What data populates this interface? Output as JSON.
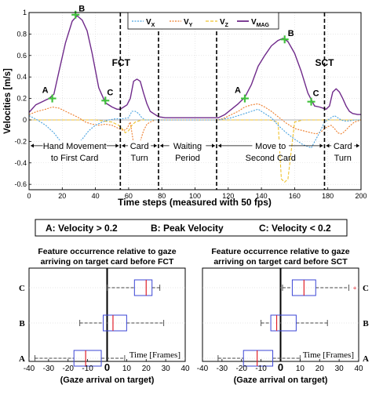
{
  "chart_data": [
    {
      "type": "line",
      "xlabel": "Time steps (measured with 50 fps)",
      "ylabel": "Velocities [m/s]",
      "xlim": [
        0,
        200
      ],
      "ylim": [
        -0.65,
        1.0
      ],
      "xticks": [
        0,
        20,
        40,
        60,
        80,
        100,
        120,
        140,
        160,
        180,
        200
      ],
      "yticks": [
        -0.6,
        -0.4,
        -0.2,
        0,
        0.2,
        0.4,
        0.6,
        0.8,
        1
      ],
      "legend": {
        "placement": "top-center",
        "entries": [
          {
            "sym": "V",
            "sub": "X",
            "color": "#4aa3e0",
            "style": "dotted"
          },
          {
            "sym": "V",
            "sub": "Y",
            "color": "#ee7d2b",
            "style": "dotted"
          },
          {
            "sym": "V",
            "sub": "Z",
            "color": "#efc22e",
            "style": "dashed"
          },
          {
            "sym": "V",
            "sub": "MAG",
            "color": "#6f2a8a",
            "style": "solid"
          }
        ]
      },
      "series": [
        {
          "key": "vmag",
          "color": "#6f2a8a",
          "x": [
            0,
            4,
            8,
            12,
            15,
            18,
            22,
            26,
            29,
            32,
            35,
            38,
            42,
            46,
            50,
            53,
            55,
            57,
            59,
            61,
            63,
            65,
            67,
            69,
            71,
            73,
            75,
            78,
            82,
            90,
            100,
            108,
            114,
            118,
            122,
            126,
            130,
            134,
            138,
            142,
            146,
            150,
            153,
            156,
            160,
            164,
            168,
            172,
            175,
            177,
            179,
            181,
            183,
            185,
            187,
            189,
            191,
            193,
            195,
            198,
            200
          ],
          "y": [
            0.07,
            0.14,
            0.17,
            0.2,
            0.24,
            0.45,
            0.72,
            0.92,
            0.97,
            0.93,
            0.83,
            0.62,
            0.3,
            0.16,
            0.12,
            0.1,
            0.1,
            0.12,
            0.14,
            0.2,
            0.36,
            0.38,
            0.36,
            0.25,
            0.15,
            0.08,
            0.06,
            0.03,
            0.02,
            0.02,
            0.02,
            0.02,
            0.02,
            0.05,
            0.1,
            0.15,
            0.21,
            0.33,
            0.5,
            0.6,
            0.69,
            0.74,
            0.76,
            0.73,
            0.62,
            0.45,
            0.25,
            0.13,
            0.12,
            0.11,
            0.1,
            0.13,
            0.26,
            0.29,
            0.26,
            0.2,
            0.13,
            0.08,
            0.06,
            0.05,
            0.05
          ]
        },
        {
          "key": "vx",
          "color": "#4aa3e0",
          "x": [
            0,
            5,
            10,
            15,
            20,
            24,
            28,
            32,
            36,
            40,
            44,
            48,
            52,
            56,
            60,
            62,
            64,
            66,
            68,
            70,
            73,
            76,
            80,
            85,
            90,
            100,
            110,
            114,
            118,
            122,
            126,
            130,
            134,
            138,
            142,
            146,
            150,
            155,
            160,
            165,
            170,
            175,
            178,
            180,
            182,
            184,
            186,
            188,
            190,
            193,
            196,
            200
          ],
          "y": [
            0.04,
            0.0,
            -0.05,
            -0.12,
            -0.22,
            -0.26,
            -0.24,
            -0.18,
            -0.1,
            -0.05,
            -0.02,
            0.0,
            0.01,
            0.01,
            0.02,
            0.08,
            0.08,
            0.06,
            0.02,
            0.0,
            0.0,
            0.0,
            0.0,
            0.0,
            0.0,
            0.0,
            0.0,
            0.0,
            0.01,
            0.02,
            0.04,
            0.06,
            0.08,
            0.1,
            0.06,
            0.02,
            -0.05,
            -0.12,
            -0.18,
            -0.23,
            -0.26,
            -0.12,
            -0.02,
            0.0,
            0.02,
            0.04,
            0.02,
            0.0,
            -0.01,
            -0.01,
            0.0,
            0.0
          ]
        },
        {
          "key": "vy",
          "color": "#ee7d2b",
          "x": [
            0,
            5,
            10,
            14,
            18,
            22,
            26,
            30,
            34,
            38,
            42,
            46,
            50,
            54,
            57,
            59,
            61,
            63,
            65,
            67,
            69,
            71,
            73,
            76,
            80,
            90,
            100,
            108,
            114,
            118,
            122,
            126,
            130,
            134,
            138,
            142,
            146,
            150,
            155,
            160,
            165,
            170,
            173,
            176,
            179,
            182,
            184,
            186,
            188,
            190,
            193,
            196,
            200
          ],
          "y": [
            0.05,
            0.08,
            0.1,
            0.12,
            0.11,
            0.08,
            0.05,
            0.02,
            -0.02,
            -0.04,
            -0.05,
            -0.04,
            -0.05,
            -0.08,
            -0.1,
            -0.08,
            -0.02,
            -0.22,
            -0.28,
            -0.2,
            -0.1,
            -0.04,
            -0.02,
            0.0,
            0.0,
            0.0,
            0.0,
            0.0,
            0.0,
            0.02,
            0.05,
            0.08,
            0.12,
            0.14,
            0.15,
            0.12,
            0.08,
            0.03,
            -0.03,
            -0.08,
            -0.1,
            -0.12,
            -0.13,
            -0.11,
            -0.07,
            -0.05,
            -0.08,
            -0.12,
            -0.13,
            -0.11,
            -0.06,
            -0.02,
            0.0
          ]
        },
        {
          "key": "vz",
          "color": "#efc22e",
          "x": [
            0,
            10,
            20,
            30,
            40,
            50,
            54,
            56,
            58,
            60,
            62,
            64,
            66,
            68,
            70,
            72,
            76,
            80,
            90,
            100,
            110,
            120,
            130,
            140,
            145,
            150,
            152,
            154,
            156,
            160,
            165,
            170,
            175,
            180,
            185,
            190,
            195,
            200
          ],
          "y": [
            0.0,
            0.0,
            0.0,
            0.0,
            0.0,
            -0.02,
            -0.05,
            -0.08,
            -0.12,
            -0.1,
            -0.05,
            -0.02,
            -0.01,
            0.0,
            0.0,
            0.0,
            0.0,
            0.0,
            0.0,
            0.0,
            0.0,
            0.0,
            0.0,
            0.0,
            0.0,
            -0.02,
            -0.55,
            -0.58,
            -0.55,
            -0.02,
            0.0,
            0.0,
            0.0,
            0.0,
            0.0,
            0.0,
            0.0,
            0.0
          ]
        }
      ],
      "markers": [
        {
          "label": "A",
          "x": 14,
          "y": 0.2
        },
        {
          "label": "B",
          "x": 28,
          "y": 0.98
        },
        {
          "label": "C",
          "x": 46,
          "y": 0.18
        },
        {
          "label": "A",
          "x": 130,
          "y": 0.2
        },
        {
          "label": "B",
          "x": 154,
          "y": 0.75
        },
        {
          "label": "C",
          "x": 170,
          "y": 0.17
        }
      ],
      "vlines": [
        {
          "x": 55,
          "label": "FCT"
        },
        {
          "x": 78,
          "label": ""
        },
        {
          "x": 113,
          "label": ""
        },
        {
          "x": 178,
          "label": "SCT"
        }
      ],
      "phases": [
        {
          "from": 0,
          "to": 55,
          "lines": [
            "Hand Movement",
            "to First Card"
          ]
        },
        {
          "from": 55,
          "to": 78,
          "lines": [
            "Card",
            "Turn"
          ]
        },
        {
          "from": 78,
          "to": 113,
          "lines": [
            "Waiting",
            "Period"
          ]
        },
        {
          "from": 113,
          "to": 178,
          "lines": [
            "Move to",
            "Second Card"
          ]
        },
        {
          "from": 178,
          "to": 200,
          "lines": [
            "Card",
            "Turn"
          ]
        }
      ]
    },
    {
      "type": "box",
      "title": [
        "Feature occurrence relative to gaze",
        "arriving on target card before FCT"
      ],
      "xlabel": "(Gaze arrival on target)",
      "xlim": [
        -40,
        40
      ],
      "xticks": [
        -40,
        -30,
        -20,
        -10,
        0,
        10,
        20,
        30,
        40
      ],
      "time_label": "Time [Frames]",
      "categories": [
        "A",
        "B",
        "C"
      ],
      "boxes": [
        {
          "label": "A",
          "whisker_low": -37,
          "q1": -17,
          "median": -11,
          "q3": -3,
          "whisker_high": 9
        },
        {
          "label": "B",
          "whisker_low": -14,
          "q1": -2,
          "median": 3,
          "q3": 10,
          "whisker_high": 29
        },
        {
          "label": "C",
          "whisker_low": 0,
          "q1": 14,
          "median": 20,
          "q3": 23,
          "whisker_high": 27
        }
      ]
    },
    {
      "type": "box",
      "title": [
        "Feature occurrence relative to gaze",
        "arriving on target card before SCT"
      ],
      "xlabel": "(Gaze arrival on target)",
      "xlim": [
        -40,
        40
      ],
      "xticks": [
        -40,
        -30,
        -20,
        -10,
        0,
        10,
        20,
        30,
        40
      ],
      "time_label": "Time [Frames]",
      "categories": [
        "A",
        "B",
        "C"
      ],
      "boxes": [
        {
          "label": "A",
          "whisker_low": -32,
          "q1": -19,
          "median": -12,
          "q3": -4,
          "whisker_high": 10
        },
        {
          "label": "B",
          "whisker_low": -10,
          "q1": -5,
          "median": -2,
          "q3": 8,
          "whisker_high": 24
        },
        {
          "label": "C",
          "whisker_low": 1,
          "q1": 6,
          "median": 12,
          "q3": 18,
          "whisker_high": 35,
          "outlier": 38
        }
      ]
    }
  ],
  "feature_legend": {
    "a": "A: Velocity > 0.2",
    "b": "B: Peak Velocity",
    "c": "C: Velocity < 0.2"
  },
  "colors": {
    "box_edge": "#3b46d6",
    "median": "#e0202a",
    "marker": "#41c03c",
    "outlier": "#e0202a"
  }
}
